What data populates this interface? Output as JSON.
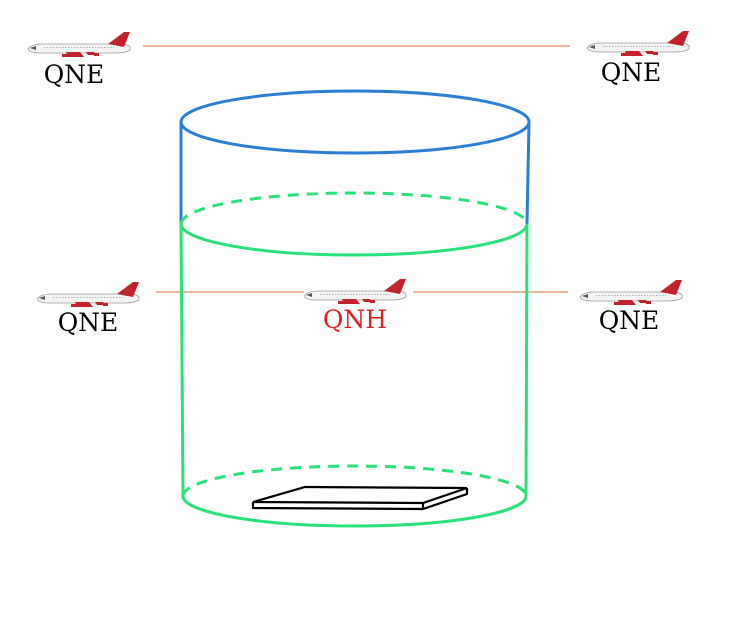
{
  "labels": {
    "top_left": "QNE",
    "top_right": "QNE",
    "mid_left": "QNE",
    "mid_center": "QNH",
    "mid_right": "QNE"
  },
  "colors": {
    "altitude_line": "#e08a5a",
    "upper_cylinder": "#2a7fd4",
    "lower_cylinder": "#29e07a",
    "qnh_label": "#e02020",
    "qne_label": "#000000",
    "runway": "#000000",
    "aircraft_tail": "#c0232b"
  },
  "icons": {
    "aircraft": "airliner-icon",
    "runway": "runway-icon"
  }
}
